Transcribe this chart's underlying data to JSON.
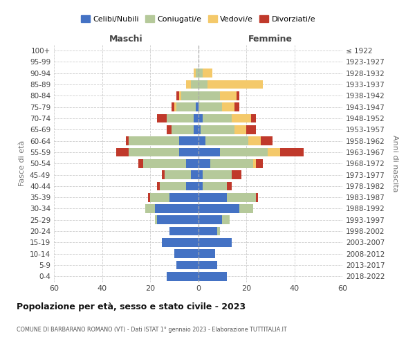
{
  "age_groups": [
    "0-4",
    "5-9",
    "10-14",
    "15-19",
    "20-24",
    "25-29",
    "30-34",
    "35-39",
    "40-44",
    "45-49",
    "50-54",
    "55-59",
    "60-64",
    "65-69",
    "70-74",
    "75-79",
    "80-84",
    "85-89",
    "90-94",
    "95-99",
    "100+"
  ],
  "birth_years": [
    "2018-2022",
    "2013-2017",
    "2008-2012",
    "2003-2007",
    "1998-2002",
    "1993-1997",
    "1988-1992",
    "1983-1987",
    "1978-1982",
    "1973-1977",
    "1968-1972",
    "1963-1967",
    "1958-1962",
    "1953-1957",
    "1948-1952",
    "1943-1947",
    "1938-1942",
    "1933-1937",
    "1928-1932",
    "1923-1927",
    "≤ 1922"
  ],
  "males": {
    "celibi": [
      13,
      9,
      10,
      15,
      12,
      17,
      18,
      12,
      5,
      3,
      5,
      8,
      8,
      2,
      2,
      1,
      0,
      0,
      0,
      0,
      0
    ],
    "coniugati": [
      0,
      0,
      0,
      0,
      0,
      1,
      4,
      8,
      11,
      11,
      18,
      21,
      21,
      9,
      11,
      8,
      7,
      3,
      1,
      0,
      0
    ],
    "vedovi": [
      0,
      0,
      0,
      0,
      0,
      0,
      0,
      0,
      0,
      0,
      0,
      0,
      0,
      0,
      0,
      1,
      1,
      2,
      1,
      0,
      0
    ],
    "divorziati": [
      0,
      0,
      0,
      0,
      0,
      0,
      0,
      1,
      1,
      1,
      2,
      5,
      1,
      2,
      4,
      1,
      1,
      0,
      0,
      0,
      0
    ]
  },
  "females": {
    "nubili": [
      12,
      8,
      7,
      14,
      8,
      10,
      17,
      12,
      2,
      2,
      5,
      9,
      3,
      1,
      2,
      0,
      0,
      0,
      0,
      0,
      0
    ],
    "coniugate": [
      0,
      0,
      0,
      0,
      1,
      3,
      6,
      12,
      10,
      12,
      18,
      20,
      18,
      14,
      12,
      10,
      9,
      4,
      2,
      0,
      0
    ],
    "vedove": [
      0,
      0,
      0,
      0,
      0,
      0,
      0,
      0,
      0,
      0,
      1,
      5,
      5,
      5,
      8,
      5,
      7,
      23,
      4,
      0,
      0
    ],
    "divorziate": [
      0,
      0,
      0,
      0,
      0,
      0,
      0,
      1,
      2,
      4,
      3,
      10,
      5,
      4,
      2,
      2,
      1,
      0,
      0,
      0,
      0
    ]
  },
  "colors": {
    "celibi": "#4472c4",
    "coniugati": "#b5c99a",
    "vedovi": "#f4c96a",
    "divorziati": "#c0392b"
  },
  "xlim": 60,
  "title1": "Popolazione per età, sesso e stato civile - 2023",
  "title2": "COMUNE DI BARBARANO ROMANO (VT) - Dati ISTAT 1° gennaio 2023 - Elaborazione TUTTITALIA.IT",
  "ylabel_left": "Fasce di età",
  "ylabel_right": "Anni di nascita",
  "xlabel_left": "Maschi",
  "xlabel_right": "Femmine"
}
